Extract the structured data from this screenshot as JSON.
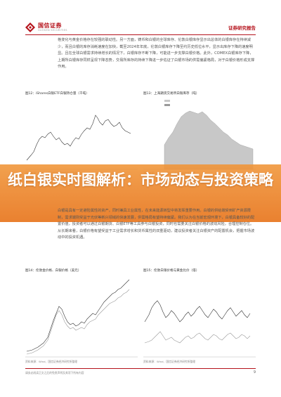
{
  "header": {
    "brand": "国信证券",
    "brand_sub": "GUOSEN SECURITIES",
    "report_type": "证券研究报告"
  },
  "paragraph_1": "格变化与黄金价格存在较强的联动性。另一方面，铸币和白银的全球库存、伦敦白银库存显示出总体的白银库存在持续减少，而且白银的库存消耗速度在加快，截至2024年年底，伦敦白银库存下降至约历史低位水平，显示出库存下降的速度明显。且在全球白银需求持续增长的情况下，白银库存不断下降，可能进一步支撑白银价格。此外，COMEX白银库存下降，上期所白银库存同样呈现下降态势，交易所库存的持续下降进一步佐证了白银市场的供需偏紧格局，对于白银价格形成支撑作用。",
  "figures": [
    {
      "title": "图12：iShares白银ETF白银持仓量（千吨）",
      "source": "资料来源：Wind、国信证券经济研究所整理"
    },
    {
      "title": "图13：上海期货交易所白银库存（吨）",
      "source": "资料来源：Wind、国信证券经济研究所整理"
    },
    {
      "title": "图14：伦敦金价格、白银价格（美元）",
      "source": "资料来源：Wind、国信证券经济研究所整理"
    },
    {
      "title": "图15：伦敦白银价格与黄金比价（倍）",
      "source": "资料来源：Wind、国信证券经济研究所整理"
    }
  ],
  "banner": {
    "title": "纸白银实时图解析：市场动态与投资策略"
  },
  "section_heading": "三、白银基金配置",
  "paragraph_2": "白银是具有一定避险属性的资产，同时兼具工业属性，在未来能源转型中将发挥重要作用。白银的供给端受到矿产资源限制，需求端则受益于光伏等新兴领域的快速发展，供需格局有望持续偏紧。我们认为在当前宏观环境下，白银具备较好的配置价值，投资者可以通过白银期货、白银ETF等工具参与白银投资，同时也需要关注白银价格的波动风险，合理控制仓位。从长期来看，白银价格有望受益于工业需求增长和货币属性的双重驱动，建议投资者关注白银资产的配置机会，把握市场波动中的投资机遇。",
  "footer": {
    "disclaimer": "请务必阅读正文之后的免责声明及其项下所有内容",
    "page_number": "9"
  },
  "colors": {
    "brand_red": "#b5121b",
    "line_dark": "#333333",
    "area_gray": "#c8c8c8",
    "banner_orange": "#ec8a2e"
  }
}
